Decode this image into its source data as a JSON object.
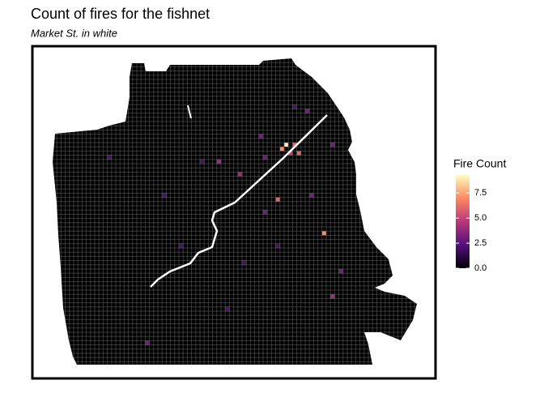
{
  "chart_data": {
    "type": "fishnet",
    "title": "Count of fires for the fishnet",
    "subtitle": "Market St. in white",
    "legend_title": "Fire Count",
    "clim": [
      0,
      9.3
    ],
    "colors": [
      "#000004",
      "#51127c",
      "#b73779",
      "#fc8961",
      "#fcfdbf"
    ],
    "legend_ticks": [
      {
        "value": 0,
        "label": "0.0"
      },
      {
        "value": 2.5,
        "label": "2.5"
      },
      {
        "value": 5,
        "label": "5.0"
      },
      {
        "value": 7.5,
        "label": "7.5"
      }
    ],
    "cells": [
      {
        "col": 55,
        "row": 20,
        "value": 9
      },
      {
        "col": 54,
        "row": 21,
        "value": 7
      },
      {
        "col": 57,
        "row": 20,
        "value": 6
      },
      {
        "col": 58,
        "row": 22,
        "value": 6
      },
      {
        "col": 53,
        "row": 33,
        "value": 6
      },
      {
        "col": 64,
        "row": 41,
        "value": 7
      },
      {
        "col": 39,
        "row": 24,
        "value": 4
      },
      {
        "col": 56,
        "row": 22,
        "value": 5
      },
      {
        "col": 44,
        "row": 27,
        "value": 4
      },
      {
        "col": 50,
        "row": 23,
        "value": 3
      },
      {
        "col": 66,
        "row": 56,
        "value": 4
      },
      {
        "col": 49,
        "row": 18,
        "value": 3
      },
      {
        "col": 22,
        "row": 67,
        "value": 3
      },
      {
        "col": 66,
        "row": 20,
        "value": 3
      },
      {
        "col": 61,
        "row": 32,
        "value": 3
      },
      {
        "col": 35,
        "row": 24,
        "value": 2
      },
      {
        "col": 13,
        "row": 23,
        "value": 2
      },
      {
        "col": 68,
        "row": 50,
        "value": 3
      },
      {
        "col": 50,
        "row": 36,
        "value": 3
      },
      {
        "col": 30,
        "row": 44,
        "value": 2
      },
      {
        "col": 45,
        "row": 48,
        "value": 2
      },
      {
        "col": 41,
        "row": 59,
        "value": 2
      },
      {
        "col": 57,
        "row": 11,
        "value": 2
      },
      {
        "col": 60,
        "row": 12,
        "value": 3
      },
      {
        "col": 26,
        "row": 32,
        "value": 2
      },
      {
        "col": 53,
        "row": 44,
        "value": 2
      }
    ]
  }
}
